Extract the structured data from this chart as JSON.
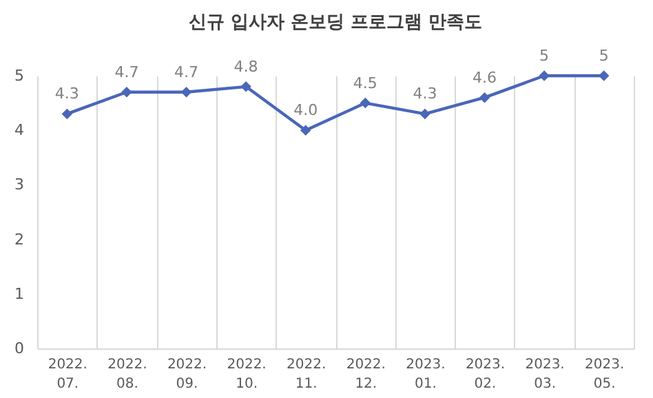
{
  "chart_data": {
    "type": "line",
    "title": "신규 입사자 온보딩 프로그램 만족도",
    "categories": [
      "2022.\n07.",
      "2022.\n08.",
      "2022.\n09.",
      "2022.\n10.",
      "2022.\n11.",
      "2022.\n12.",
      "2023.\n01.",
      "2023.\n02.",
      "2023.\n03.",
      "2023.\n05."
    ],
    "series": [
      {
        "color": "#4a66b8",
        "values": [
          4.3,
          4.7,
          4.7,
          4.8,
          4.0,
          4.5,
          4.3,
          4.6,
          5,
          5
        ],
        "value_labels": [
          "4.3",
          "4.7",
          "4.7",
          "4.8",
          "4.0",
          "4.5",
          "4.3",
          "4.6",
          "5",
          "5"
        ]
      }
    ],
    "ylim": [
      0,
      5
    ],
    "yticks": [
      0,
      1,
      2,
      3,
      4,
      5
    ],
    "grid": "x",
    "marker": "diamond",
    "line_style": "solid"
  }
}
